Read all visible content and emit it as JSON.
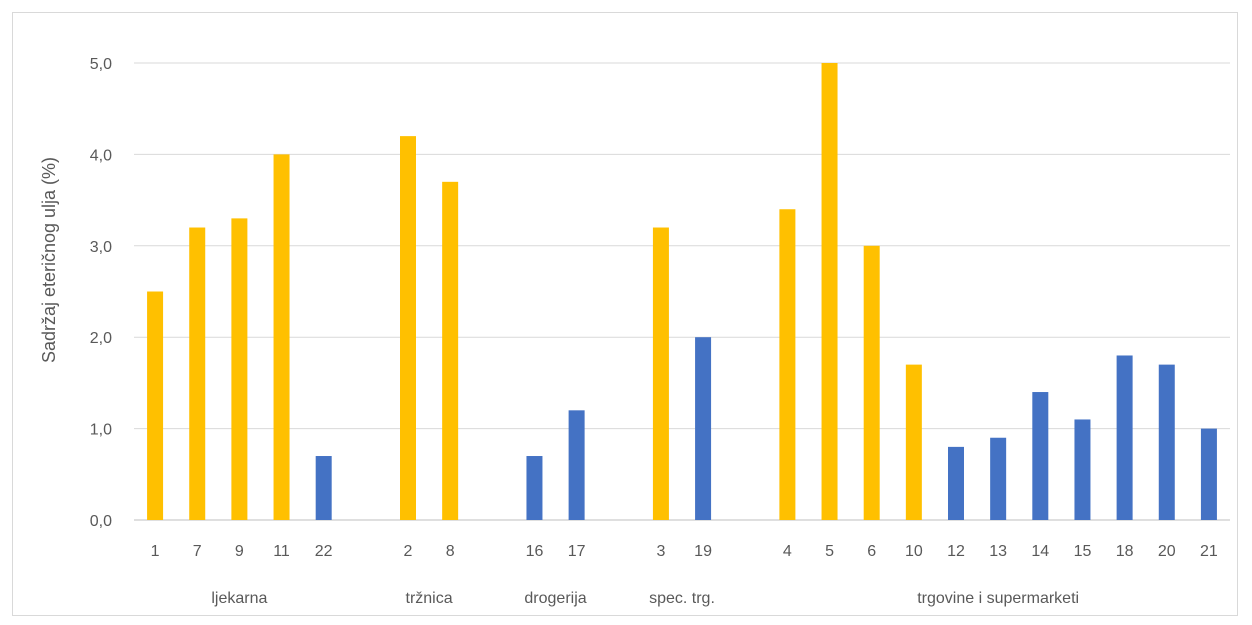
{
  "chart_data": {
    "type": "bar",
    "ylabel": "Sadržaj eteričnog ulja (%)",
    "ylim": [
      0,
      5
    ],
    "y_ticks": [
      "0,0",
      "1,0",
      "2,0",
      "3,0",
      "4,0",
      "5,0"
    ],
    "grid": true,
    "colors": {
      "yellow": "#FFC000",
      "blue": "#4472C4"
    },
    "groups": [
      {
        "name": "ljekarna",
        "items": [
          {
            "label": "1",
            "value": 2.5,
            "color": "yellow"
          },
          {
            "label": "7",
            "value": 3.2,
            "color": "yellow"
          },
          {
            "label": "9",
            "value": 3.3,
            "color": "yellow"
          },
          {
            "label": "11",
            "value": 4.0,
            "color": "yellow"
          },
          {
            "label": "22",
            "value": 0.7,
            "color": "blue"
          }
        ]
      },
      {
        "name": "tržnica",
        "items": [
          {
            "label": "2",
            "value": 4.2,
            "color": "yellow"
          },
          {
            "label": "8",
            "value": 3.7,
            "color": "yellow"
          }
        ]
      },
      {
        "name": "drogerija",
        "items": [
          {
            "label": "16",
            "value": 0.7,
            "color": "blue"
          },
          {
            "label": "17",
            "value": 1.2,
            "color": "blue"
          }
        ]
      },
      {
        "name": "spec. trg.",
        "items": [
          {
            "label": "3",
            "value": 3.2,
            "color": "yellow"
          },
          {
            "label": "19",
            "value": 2.0,
            "color": "blue"
          }
        ]
      },
      {
        "name": "trgovine i supermarketi",
        "items": [
          {
            "label": "4",
            "value": 3.4,
            "color": "yellow"
          },
          {
            "label": "5",
            "value": 5.0,
            "color": "yellow"
          },
          {
            "label": "6",
            "value": 3.0,
            "color": "yellow"
          },
          {
            "label": "10",
            "value": 1.7,
            "color": "yellow"
          },
          {
            "label": "12",
            "value": 0.8,
            "color": "blue"
          },
          {
            "label": "13",
            "value": 0.9,
            "color": "blue"
          },
          {
            "label": "14",
            "value": 1.4,
            "color": "blue"
          },
          {
            "label": "15",
            "value": 1.1,
            "color": "blue"
          },
          {
            "label": "18",
            "value": 1.8,
            "color": "blue"
          },
          {
            "label": "20",
            "value": 1.7,
            "color": "blue"
          },
          {
            "label": "21",
            "value": 1.0,
            "color": "blue"
          }
        ]
      }
    ]
  }
}
